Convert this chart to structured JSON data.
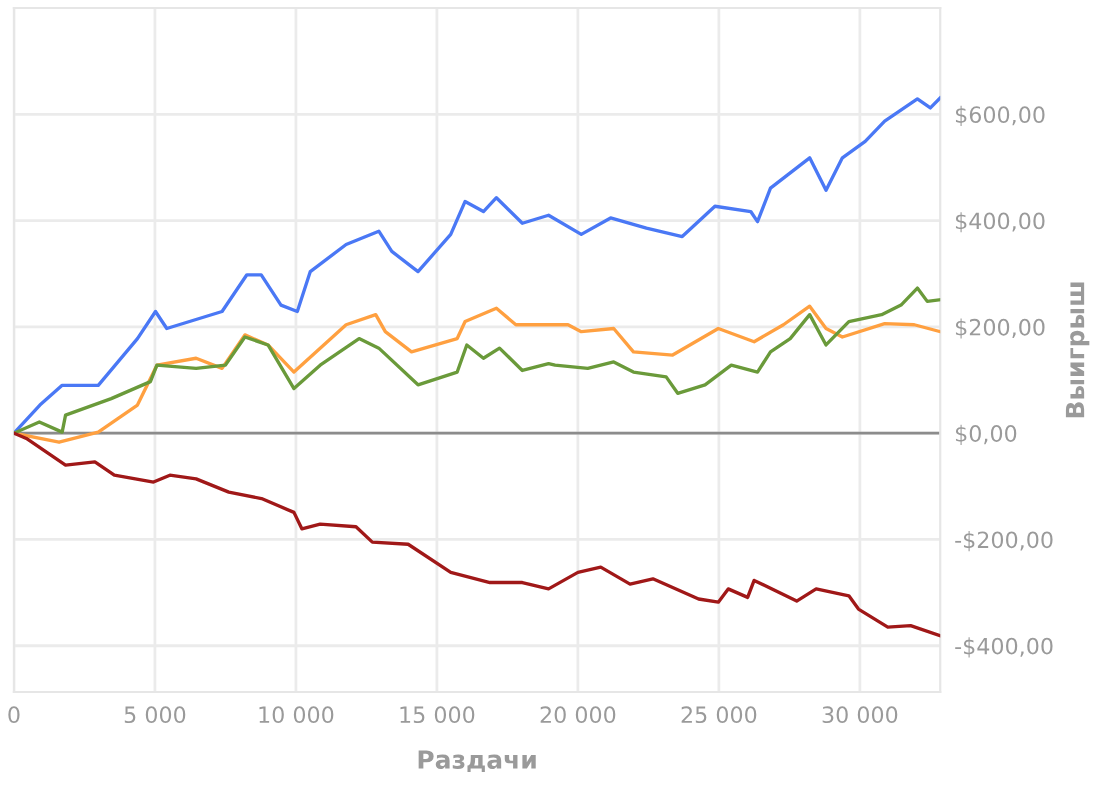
{
  "chart_data": {
    "type": "line",
    "xlabel": "Раздачи",
    "ylabel": "Выигрыш",
    "xlim": [
      0,
      32850
    ],
    "ylim": [
      -487,
      800
    ],
    "xticks": [
      0,
      {
        "value": 5000,
        "label": "5 000"
      },
      {
        "value": 10000,
        "label": "10 000"
      },
      {
        "value": 15000,
        "label": "15 000"
      },
      {
        "value": 20000,
        "label": "20 000"
      },
      {
        "value": 25000,
        "label": "25 000"
      },
      {
        "value": 30000,
        "label": "30 000"
      }
    ],
    "yticks": [
      {
        "value": -400,
        "label": "-$400,00"
      },
      {
        "value": -200,
        "label": "-$200,00"
      },
      {
        "value": 0,
        "label": "$0,00"
      },
      {
        "value": 200,
        "label": "$200,00"
      },
      {
        "value": 400,
        "label": "$400,00"
      },
      {
        "value": 600,
        "label": "$600,00"
      }
    ],
    "grid": true,
    "marker": "none",
    "line_style": "solid",
    "ref_lines": [
      {
        "axis": "y",
        "value": 0,
        "color": "#8c8c8c"
      }
    ],
    "series": [
      {
        "color": "#4a78f5",
        "x": [
          0,
          920,
          1710,
          2990,
          4380,
          5020,
          5420,
          7380,
          8260,
          8770,
          9470,
          10050,
          10510,
          11780,
          12940,
          13400,
          14330,
          15490,
          16000,
          16650,
          17110,
          18030,
          18960,
          20120,
          21160,
          22430,
          23700,
          24860,
          26130,
          26370,
          26830,
          28220,
          28800,
          29380,
          30190,
          30880,
          32040,
          32500,
          32850
        ],
        "values": [
          0,
          53,
          90,
          90,
          178,
          229,
          197,
          229,
          298,
          298,
          241,
          229,
          304,
          355,
          380,
          342,
          304,
          374,
          436,
          417,
          443,
          395,
          410,
          374,
          405,
          386,
          370,
          427,
          417,
          398,
          461,
          518,
          457,
          518,
          549,
          587,
          629,
          612,
          631
        ]
      },
      {
        "color": "#ffa040",
        "x": [
          0,
          1600,
          2990,
          4380,
          5070,
          6460,
          7380,
          8190,
          9010,
          9930,
          11780,
          12830,
          13170,
          14100,
          15720,
          16000,
          17110,
          17800,
          18960,
          19650,
          20120,
          21270,
          21970,
          23360,
          24980,
          26250,
          27290,
          28220,
          28800,
          29380,
          30880,
          31930,
          32850
        ],
        "values": [
          0,
          -17,
          2,
          53,
          128,
          141,
          122,
          185,
          166,
          115,
          204,
          223,
          191,
          153,
          178,
          210,
          235,
          204,
          204,
          204,
          191,
          197,
          153,
          147,
          197,
          172,
          204,
          239,
          197,
          181,
          206,
          204,
          191
        ]
      },
      {
        "color": "#6a9a3a",
        "x": [
          0,
          900,
          1710,
          1830,
          3450,
          4840,
          5070,
          6460,
          7500,
          8190,
          9010,
          9930,
          10860,
          12240,
          12940,
          14330,
          15720,
          16060,
          16650,
          17220,
          18030,
          18960,
          19190,
          20350,
          21270,
          21970,
          23130,
          23540,
          24510,
          25440,
          26370,
          26830,
          27530,
          28220,
          28800,
          29610,
          30770,
          31460,
          32040,
          32390,
          32850
        ],
        "values": [
          0,
          21,
          2,
          34,
          65,
          97,
          128,
          122,
          128,
          181,
          166,
          84,
          128,
          178,
          160,
          91,
          115,
          166,
          141,
          160,
          118,
          131,
          128,
          122,
          134,
          115,
          106,
          75,
          91,
          128,
          115,
          153,
          178,
          223,
          166,
          210,
          223,
          241,
          273,
          248,
          251
        ]
      },
      {
        "color": "#a01818",
        "x": [
          0,
          440,
          1830,
          2870,
          3560,
          4950,
          5530,
          6460,
          7620,
          8780,
          9930,
          10210,
          10860,
          12130,
          12710,
          13980,
          15490,
          16880,
          18030,
          18960,
          20000,
          20810,
          21850,
          22660,
          24280,
          24980,
          25330,
          26020,
          26250,
          27760,
          28450,
          29610,
          29950,
          30990,
          31800,
          32850
        ],
        "values": [
          0,
          -10,
          -60,
          -54,
          -79,
          -92,
          -79,
          -86,
          -111,
          -123,
          -149,
          -180,
          -171,
          -176,
          -205,
          -209,
          -262,
          -281,
          -281,
          -293,
          -262,
          -252,
          -284,
          -274,
          -312,
          -318,
          -293,
          -309,
          -277,
          -316,
          -293,
          -306,
          -331,
          -365,
          -362,
          -381
        ]
      }
    ]
  }
}
